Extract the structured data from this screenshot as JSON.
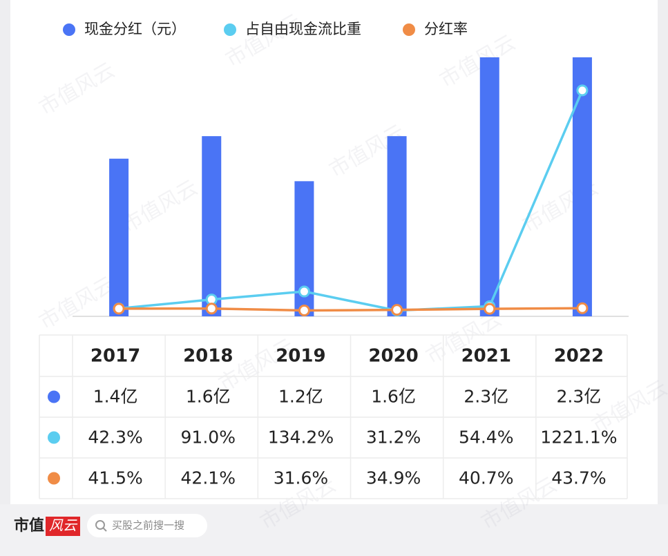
{
  "chart_data": {
    "type": "bar",
    "categories": [
      "2017",
      "2018",
      "2019",
      "2020",
      "2021",
      "2022"
    ],
    "series": [
      {
        "name": "现金分红（元）",
        "color": "#4a74f5",
        "values": [
          1.4,
          1.6,
          1.2,
          1.6,
          2.3,
          2.3
        ],
        "value_labels": [
          "1.4亿",
          "1.6亿",
          "1.2亿",
          "1.6亿",
          "2.3亿",
          "2.3亿"
        ]
      },
      {
        "name": "占自由现金流比重",
        "type": "line",
        "axis": "y2",
        "color": "#5bcdf0",
        "values": [
          42.3,
          91.0,
          134.2,
          31.2,
          54.4,
          1221.1
        ],
        "value_labels": [
          "42.3%",
          "91.0%",
          "134.2%",
          "31.2%",
          "54.4%",
          "1221.1%"
        ]
      },
      {
        "name": "分红率",
        "type": "line",
        "axis": "y2",
        "color": "#f08c46",
        "values": [
          41.5,
          42.1,
          31.6,
          34.9,
          40.7,
          43.7
        ],
        "value_labels": [
          "41.5%",
          "42.1%",
          "31.6%",
          "34.9%",
          "40.7%",
          "43.7%"
        ]
      }
    ],
    "ylim": [
      0,
      2.3
    ],
    "y2lim": [
      0,
      1400
    ]
  },
  "footer": {
    "brand": "市值",
    "brand_logo": "风云",
    "search": "买股之前搜一搜"
  },
  "watermark": "市值风云"
}
